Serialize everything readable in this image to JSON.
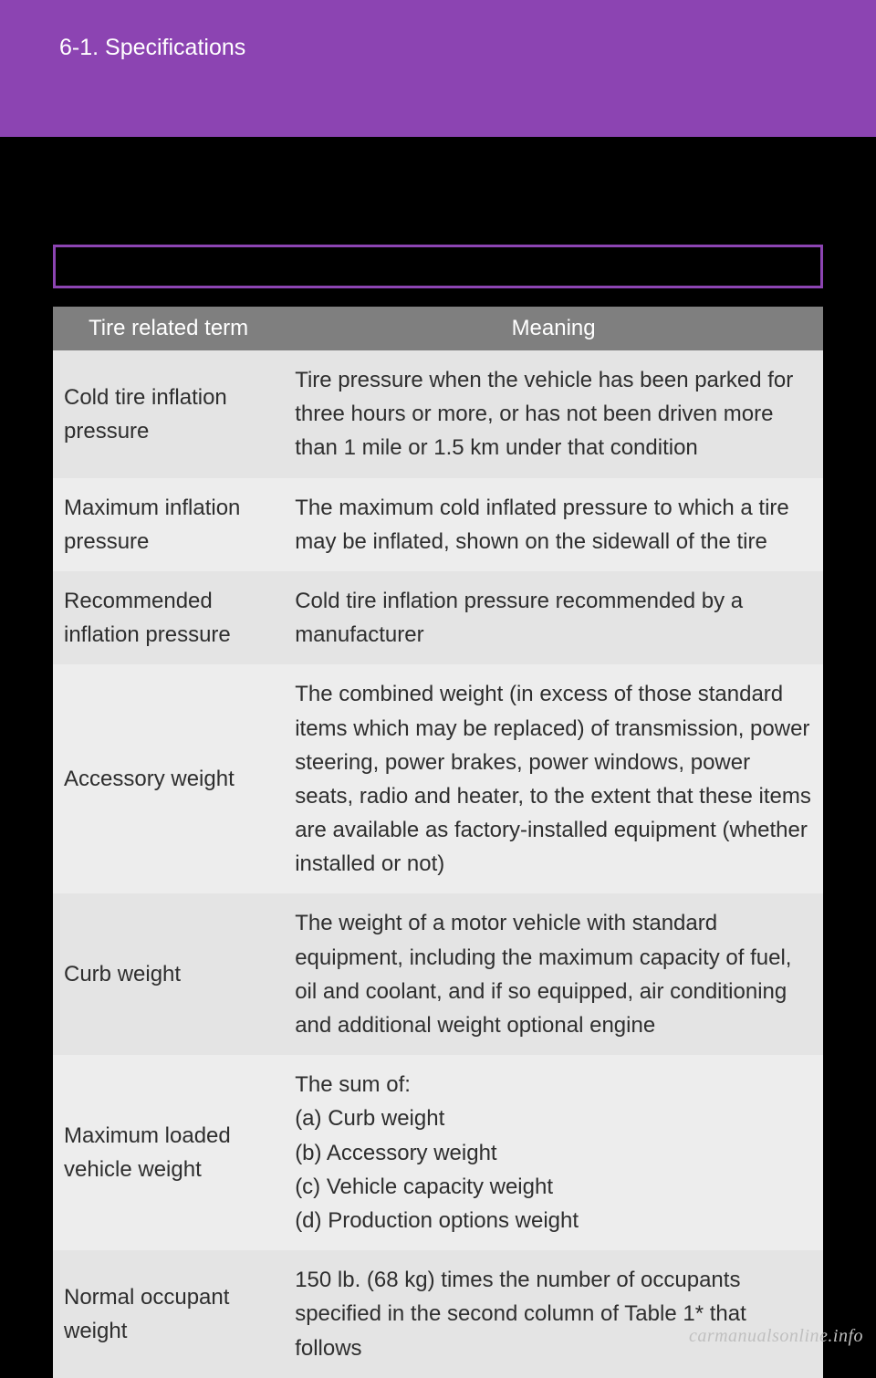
{
  "header": {
    "section": "6-1. Specifications"
  },
  "table": {
    "columns": {
      "term": "Tire related term",
      "meaning": "Meaning"
    },
    "rows": [
      {
        "term": "Cold tire inflation pressure",
        "meaning": "Tire pressure when the vehicle has been parked for three hours or more, or has not been driven more than 1 mile or 1.5 km under that condition"
      },
      {
        "term": "Maximum inflation pressure",
        "meaning": "The maximum cold inflated pressure to which a tire may be inflated, shown on the sidewall of the tire"
      },
      {
        "term": "Recommended inflation pressure",
        "meaning": "Cold tire inflation pressure recommended by a manufacturer"
      },
      {
        "term": "Accessory weight",
        "meaning": "The combined weight (in excess of those standard items which may be replaced) of transmission, power steering, power brakes, power windows, power seats, radio and heater, to the extent that these items are available as factory-installed equipment (whether installed or not)"
      },
      {
        "term": "Curb weight",
        "meaning": "The weight of a motor vehicle with standard equipment, including the maximum capacity of fuel, oil and coolant, and if so equipped, air conditioning and additional weight optional engine"
      },
      {
        "term": "Maximum loaded vehicle weight",
        "meaning": "The sum of:\n(a) Curb weight\n(b) Accessory weight\n(c) Vehicle capacity weight\n(d) Production options weight"
      },
      {
        "term": "Normal occupant weight",
        "meaning": "150 lb. (68 kg) times the number of occupants specified in the second column of Table 1* that follows"
      }
    ]
  },
  "watermark": "carmanualsonline.info",
  "style": {
    "page_bg": "#000000",
    "header_bg": "#8c44b2",
    "header_text_color": "#ffffff",
    "bar_border": "#8c44b2",
    "th_bg": "#7f7f7f",
    "th_color": "#ffffff",
    "td_bg_a": "#e4e4e4",
    "td_bg_b": "#ededed",
    "td_color": "#2e2e2e",
    "watermark_color": "#bfbfbf",
    "header_fontsize": 25,
    "th_fontsize": 24,
    "td_fontsize": 24,
    "line_height": 1.55
  }
}
